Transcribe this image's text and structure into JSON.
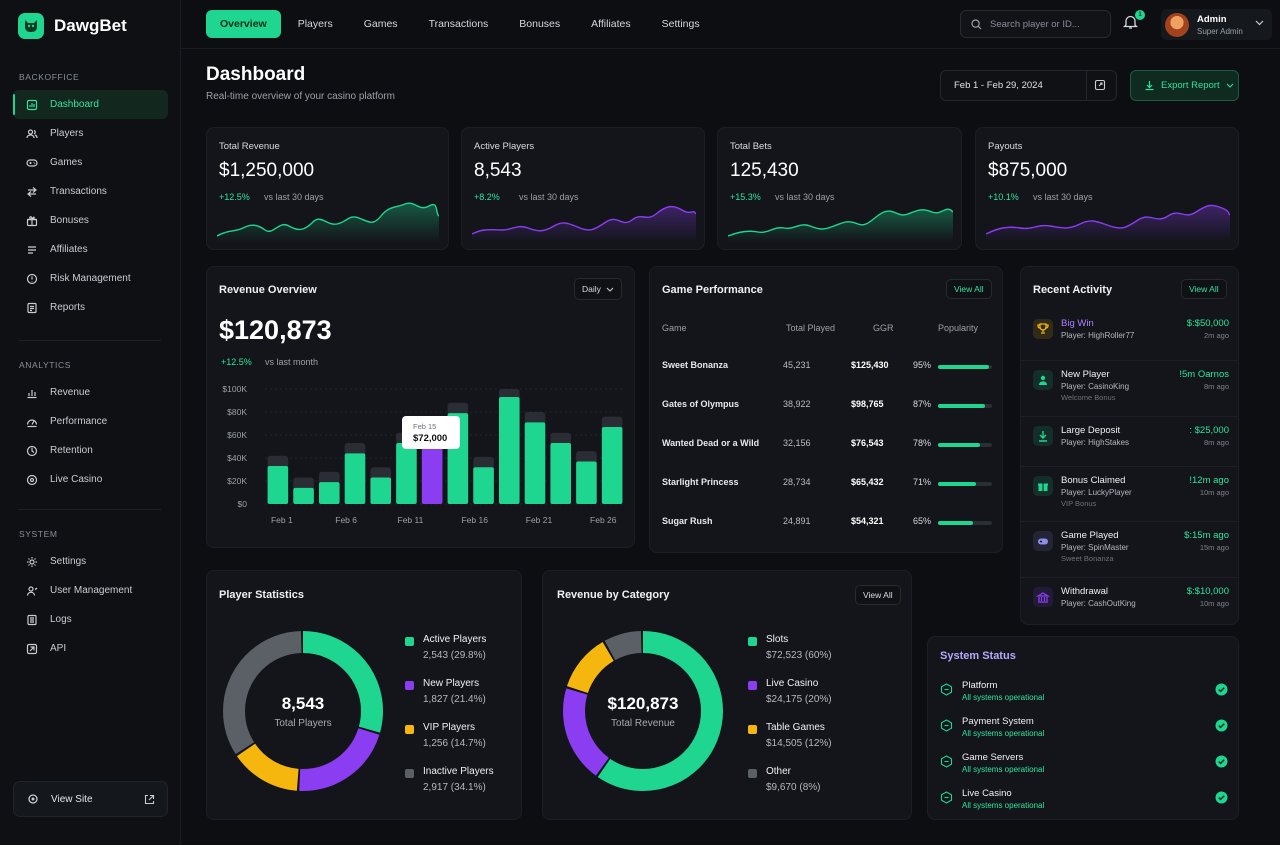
{
  "brand": {
    "name": "DawgBet"
  },
  "sidebar": {
    "sections": [
      {
        "heading": "BACKOFFICE",
        "items": [
          {
            "label": "Dashboard",
            "icon": "dashboard-icon",
            "active": true
          },
          {
            "label": "Players",
            "icon": "users-icon"
          },
          {
            "label": "Games",
            "icon": "gamepad-icon"
          },
          {
            "label": "Transactions",
            "icon": "transactions-icon"
          },
          {
            "label": "Bonuses",
            "icon": "gift-icon"
          },
          {
            "label": "Affiliates",
            "icon": "affiliates-icon"
          },
          {
            "label": "Risk Management",
            "icon": "risk-icon"
          },
          {
            "label": "Reports",
            "icon": "reports-icon"
          }
        ]
      },
      {
        "heading": "ANALYTICS",
        "items": [
          {
            "label": "Revenue",
            "icon": "bar-chart-icon"
          },
          {
            "label": "Performance",
            "icon": "performance-icon"
          },
          {
            "label": "Retention",
            "icon": "retention-icon"
          },
          {
            "label": "Live Casino",
            "icon": "live-casino-icon"
          }
        ]
      },
      {
        "heading": "SYSTEM",
        "items": [
          {
            "label": "Settings",
            "icon": "gear-icon"
          },
          {
            "label": "User Management",
            "icon": "user-management-icon"
          },
          {
            "label": "Logs",
            "icon": "logs-icon"
          },
          {
            "label": "API",
            "icon": "api-icon"
          }
        ]
      }
    ],
    "view_site": "View Site"
  },
  "topbar": {
    "tabs": [
      {
        "label": "Overview",
        "active": true
      },
      {
        "label": "Players"
      },
      {
        "label": "Games"
      },
      {
        "label": "Transactions"
      },
      {
        "label": "Bonuses"
      },
      {
        "label": "Affiliates"
      },
      {
        "label": "Settings"
      }
    ],
    "search_placeholder": "Search player or ID...",
    "notifications": "1",
    "user": {
      "name": "Admin",
      "role": "Super Admin"
    }
  },
  "header": {
    "title": "Dashboard",
    "subtitle": "Real-time overview of your casino platform",
    "date_range": "Feb 1 - Feb 29, 2024",
    "export_label": "Export Report"
  },
  "kpis": [
    {
      "label": "Total Revenue",
      "value": "$1,250,000",
      "change": "+12.5%",
      "vs": "vs last 30 days",
      "color": "#1ed68f"
    },
    {
      "label": "Active Players",
      "value": "8,543",
      "change": "+8.2%",
      "vs": "vs last 30 days",
      "color": "#8b3df2"
    },
    {
      "label": "Total Bets",
      "value": "125,430",
      "change": "+15.3%",
      "vs": "vs last 30 days",
      "color": "#1ed68f"
    },
    {
      "label": "Payouts",
      "value": "$875,000",
      "change": "+10.1%",
      "vs": "vs last 30 days",
      "color": "#8b3df2"
    }
  ],
  "revenue_overview": {
    "title": "Revenue Overview",
    "period": "Daily",
    "value": "$120,873",
    "change": "+12.5%",
    "vs": "vs last month",
    "tooltip": {
      "date": "Feb 15",
      "value": "$72,000"
    }
  },
  "chart_data": {
    "type": "bar",
    "ylim": [
      0,
      100000
    ],
    "y_ticks": [
      "$0",
      "$20K",
      "$40K",
      "$60K",
      "$80K",
      "$100K"
    ],
    "x_tick_labels": [
      "Feb 1",
      "Feb 6",
      "Feb 11",
      "Feb 16",
      "Feb 21",
      "Feb 26"
    ],
    "values": [
      33000,
      14000,
      19000,
      44000,
      23000,
      53000,
      66000,
      79000,
      32000,
      93000,
      71000,
      53000,
      37000,
      67000
    ],
    "highlight_index": 6,
    "bar_color": "#1ed68f",
    "highlight_color": "#8b3df2"
  },
  "game_performance": {
    "title": "Game Performance",
    "view_all": "View All",
    "columns": [
      "Game",
      "Total Played",
      "GGR",
      "Popularity"
    ],
    "rows": [
      {
        "game": "Sweet Bonanza",
        "played": "45,231",
        "ggr": "$125,430",
        "popularity": "95%",
        "pct": 95
      },
      {
        "game": "Gates of Olympus",
        "played": "38,922",
        "ggr": "$98,765",
        "popularity": "87%",
        "pct": 87
      },
      {
        "game": "Wanted Dead or a Wild",
        "played": "32,156",
        "ggr": "$76,543",
        "popularity": "78%",
        "pct": 78
      },
      {
        "game": "Starlight Princess",
        "played": "28,734",
        "ggr": "$65,432",
        "popularity": "71%",
        "pct": 71
      },
      {
        "game": "Sugar Rush",
        "played": "24,891",
        "ggr": "$54,321",
        "popularity": "65%",
        "pct": 65
      }
    ]
  },
  "recent_activity": {
    "title": "Recent Activity",
    "view_all": "View All",
    "items": [
      {
        "title": "Big Win",
        "player": "Player: HighRoller77",
        "extra": "",
        "value": "$:$50,000",
        "time": "2m ago",
        "icon": "trophy-icon",
        "color": "#f5b60e",
        "title_color": "#b07cff"
      },
      {
        "title": "New Player",
        "player": "Player: CasinoKing",
        "extra": "Welcome Bonus",
        "value": "!5m Oarnos",
        "time": "8m ago",
        "icon": "user-icon",
        "color": "#1ed68f",
        "title_color": "#eef0f2"
      },
      {
        "title": "Large Deposit",
        "player": "Player: HighStakes",
        "extra": "",
        "value": ": $25,000",
        "time": "8m ago",
        "icon": "deposit-icon",
        "color": "#1ed68f",
        "title_color": "#eef0f2"
      },
      {
        "title": "Bonus Claimed",
        "player": "Player: LuckyPlayer",
        "extra": "VIP Bonus",
        "value": "!12m ago",
        "time": "10m ago",
        "icon": "gift-icon",
        "color": "#1ed68f",
        "title_color": "#eef0f2"
      },
      {
        "title": "Game Played",
        "player": "Player: SpinMaster",
        "extra": "Sweet Bonanza",
        "value": "$:15m ago",
        "time": "15m ago",
        "icon": "gamepad-icon",
        "color": "#8b8fe8",
        "title_color": "#eef0f2"
      },
      {
        "title": "Withdrawal",
        "player": "Player: CashOutKing",
        "extra": "",
        "value": "$:$10,000",
        "time": "10m ago",
        "icon": "bank-icon",
        "color": "#8b3df2",
        "title_color": "#eef0f2"
      }
    ]
  },
  "player_statistics": {
    "title": "Player Statistics",
    "center_value": "8,543",
    "center_label": "Total Players",
    "segments": [
      {
        "name": "Active Players",
        "value": "2,543 (29.8%)",
        "pct": 29.8,
        "color": "#1ed68f"
      },
      {
        "name": "New Players",
        "value": "1,827 (21.4%)",
        "pct": 21.4,
        "color": "#8b3df2"
      },
      {
        "name": "VIP Players",
        "value": "1,256 (14.7%)",
        "pct": 14.7,
        "color": "#f5b60e"
      },
      {
        "name": "Inactive Players",
        "value": "2,917 (34.1%)",
        "pct": 34.1,
        "color": "#5b5f66"
      }
    ]
  },
  "revenue_by_category": {
    "title": "Revenue by Category",
    "view_all": "View All",
    "center_value": "$120,873",
    "center_label": "Total Revenue",
    "segments": [
      {
        "name": "Slots",
        "value": "$72,523 (60%)",
        "pct": 60,
        "color": "#1ed68f"
      },
      {
        "name": "Live Casino",
        "value": "$24,175 (20%)",
        "pct": 20,
        "color": "#8b3df2"
      },
      {
        "name": "Table Games",
        "value": "$14,505 (12%)",
        "pct": 12,
        "color": "#f5b60e"
      },
      {
        "name": "Other",
        "value": "$9,670 (8%)",
        "pct": 8,
        "color": "#5b5f66"
      }
    ]
  },
  "system_status": {
    "title": "System Status",
    "items": [
      {
        "name": "Platform",
        "status": "All systems operational"
      },
      {
        "name": "Payment System",
        "status": "All systems operational"
      },
      {
        "name": "Game Servers",
        "status": "All systems operational"
      },
      {
        "name": "Live Casino",
        "status": "All systems operational"
      }
    ]
  }
}
